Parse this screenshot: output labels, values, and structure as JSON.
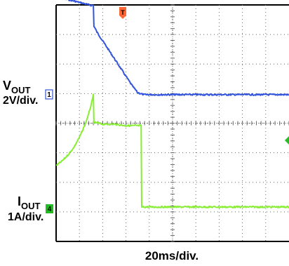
{
  "chart_data": {
    "type": "line",
    "title": "",
    "x_scale_label": "20ms/div.",
    "x_divisions": 10,
    "x_unit": "ms",
    "x_range": [
      0,
      200
    ],
    "trigger_position_ms": 40,
    "grid": true,
    "channels": [
      {
        "id": "1",
        "label_main": "V",
        "label_sub": "OUT",
        "scale_label": "2V/div.",
        "color": "#3355dd",
        "marker_color": "#3355dd",
        "y_axis_note": "ground marker at 3.3 div from top",
        "x": [
          0,
          5,
          10,
          15,
          20,
          25,
          30,
          32,
          32.5,
          35,
          40,
          45,
          50,
          55,
          60,
          65,
          70,
          75,
          80,
          100,
          120,
          140,
          160,
          180,
          200
        ],
        "y_divisions_from_ground": [
          3.25,
          3.22,
          3.2,
          3.15,
          3.1,
          3.05,
          3.0,
          3.0,
          2.3,
          2.1,
          1.8,
          1.5,
          1.2,
          0.9,
          0.6,
          0.3,
          0.05,
          -0.02,
          -0.02,
          -0.02,
          -0.02,
          -0.02,
          -0.02,
          -0.02,
          -0.02
        ]
      },
      {
        "id": "4",
        "label_main": "I",
        "label_sub": "OUT",
        "scale_label": "1A/div.",
        "color": "#88ee33",
        "marker_color": "#22bb22",
        "x": [
          0,
          5,
          10,
          15,
          20,
          25,
          28,
          30,
          31,
          32,
          32.5,
          35,
          40,
          50,
          60,
          70,
          73,
          73.5,
          80,
          100,
          120,
          140,
          160,
          180,
          200
        ],
        "y_divisions_from_ground": [
          1.45,
          1.6,
          1.8,
          2.05,
          2.4,
          2.85,
          3.2,
          3.5,
          3.65,
          3.85,
          2.9,
          2.9,
          2.85,
          2.85,
          2.8,
          2.8,
          2.8,
          0.05,
          0.05,
          0.05,
          0.05,
          0.05,
          0.05,
          0.05,
          0.05
        ]
      }
    ]
  },
  "markers": {
    "trigger": "T",
    "channel1": "1",
    "channel4": "4"
  },
  "colors": {
    "grid_border": "#000000",
    "grid_dots": "#666666",
    "trigger_marker": "#ff6633",
    "right_arrow": "#22bb22"
  }
}
